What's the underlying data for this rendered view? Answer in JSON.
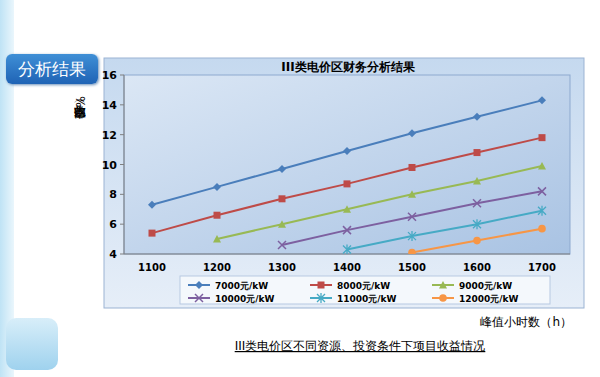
{
  "page": {
    "section_label": "分析结果"
  },
  "chart_data": {
    "type": "line",
    "title": "III类电价区财务分析结果",
    "x_label": "峰值小时数（h）",
    "y_label": "内部收益率（%）",
    "caption": "III类电价区不同资源、投资条件下项目收益情况",
    "categories": [
      "1100",
      "1200",
      "1300",
      "1400",
      "1500",
      "1600",
      "1700"
    ],
    "ylim": [
      4,
      16
    ],
    "yticks": [
      4,
      6,
      8,
      10,
      12,
      14,
      16
    ],
    "grid": false,
    "legend": "bottom",
    "series": [
      {
        "name": "7000元/kW",
        "color": "#4a7ebb",
        "marker": "diamond",
        "values": [
          7.3,
          8.5,
          9.7,
          10.9,
          12.1,
          13.2,
          14.3
        ]
      },
      {
        "name": "8000元/kW",
        "color": "#be4b48",
        "marker": "square",
        "values": [
          5.4,
          6.6,
          7.7,
          8.7,
          9.8,
          10.8,
          11.8
        ]
      },
      {
        "name": "9000元/kW",
        "color": "#98b954",
        "marker": "triangle",
        "values": [
          null,
          5.0,
          6.0,
          7.0,
          8.0,
          8.9,
          9.9
        ]
      },
      {
        "name": "10000元/kW",
        "color": "#7d60a0",
        "marker": "x",
        "values": [
          null,
          null,
          4.6,
          5.6,
          6.5,
          7.4,
          8.2
        ]
      },
      {
        "name": "11000元/kW",
        "color": "#46aac5",
        "marker": "star",
        "values": [
          null,
          null,
          null,
          4.3,
          5.2,
          6.0,
          6.9
        ]
      },
      {
        "name": "12000元/kW",
        "color": "#f79646",
        "marker": "circle",
        "values": [
          null,
          null,
          null,
          null,
          4.1,
          4.9,
          5.7
        ]
      }
    ]
  }
}
